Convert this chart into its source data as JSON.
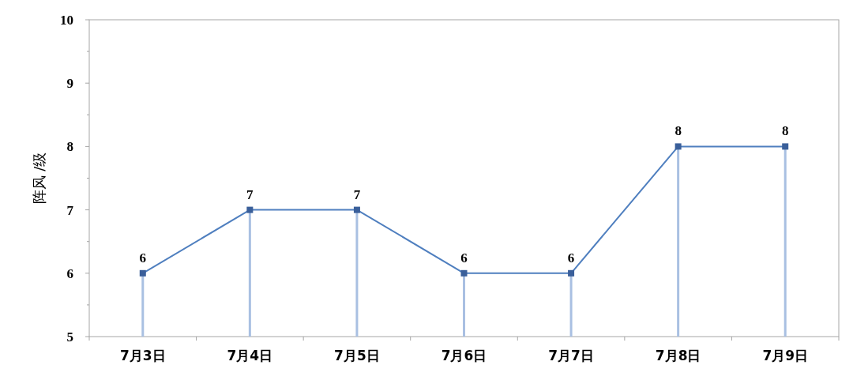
{
  "chart_data": {
    "type": "line",
    "ylabel": "阵风 /级",
    "categories": [
      "7月3日",
      "7月4日",
      "7月5日",
      "7月6日",
      "7月7日",
      "7月8日",
      "7月9日"
    ],
    "series": [
      {
        "type": "bar",
        "color": "#a9c0e2",
        "values": [
          6,
          7,
          7,
          6,
          6,
          8,
          8
        ]
      },
      {
        "color": "#4f7fbf",
        "values": [
          6,
          7,
          7,
          6,
          6,
          8,
          8
        ],
        "data_labels": true
      }
    ],
    "ylim": [
      5,
      10
    ],
    "yticks": [
      5,
      6,
      7,
      8,
      9,
      10
    ],
    "grid": false,
    "marker": "square",
    "line_style": "solid"
  }
}
